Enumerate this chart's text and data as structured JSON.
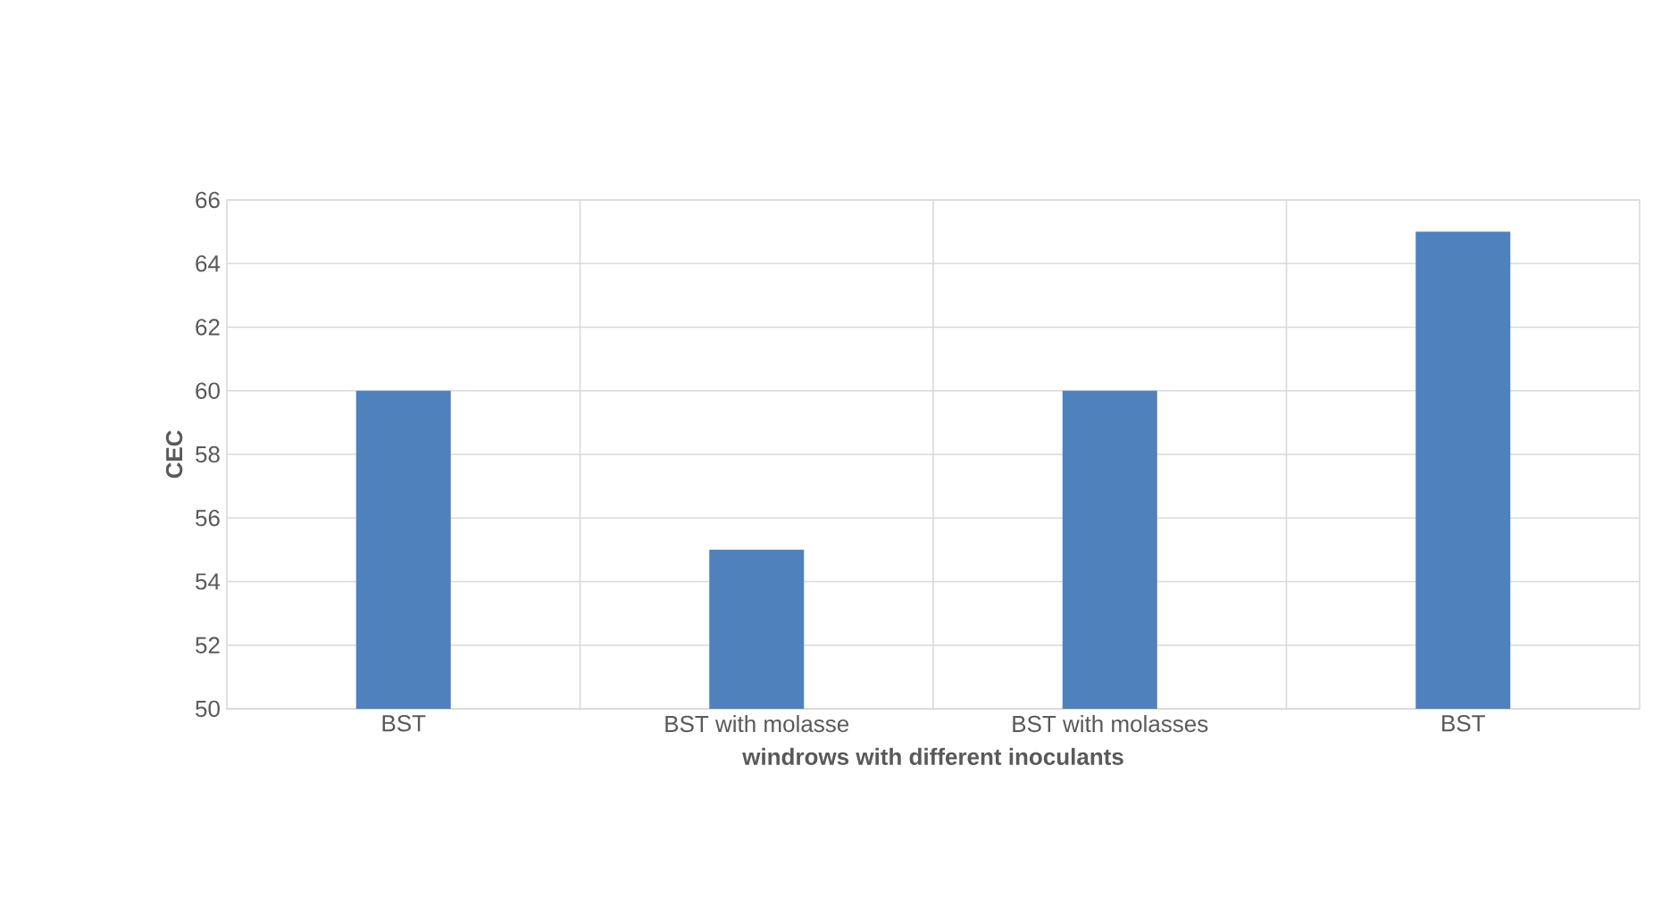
{
  "chart_data": {
    "type": "bar",
    "xlabel": "windrows with different inoculants",
    "ylabel": "CEC",
    "categories": [
      "BST",
      "BST with molasse",
      "BST with molasses",
      "BST"
    ],
    "values": [
      60,
      55,
      60,
      65
    ],
    "color": "#4f81bd",
    "ylim": [
      50,
      66
    ],
    "yticks": [
      50,
      52,
      54,
      56,
      58,
      60,
      62,
      64,
      66
    ],
    "grid": true
  }
}
